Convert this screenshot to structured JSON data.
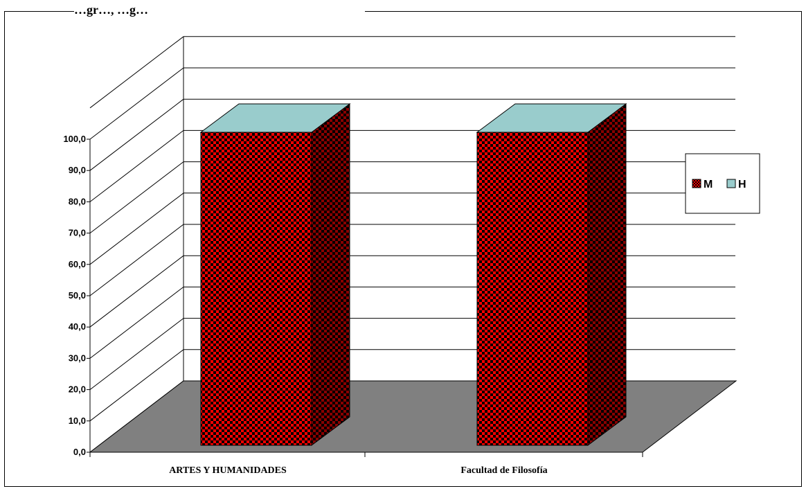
{
  "chart_data": {
    "type": "bar",
    "title_fragment": "…gr…, …g…",
    "categories": [
      "ARTES Y HUMANIDADES",
      "Facultad de Filosofía"
    ],
    "series": [
      {
        "name": "M",
        "values": [
          100.0,
          100.0
        ],
        "color": "#ff0000",
        "pattern": "checkerboard"
      },
      {
        "name": "H",
        "values": [
          0.0,
          0.0
        ],
        "color": "#99cccc"
      }
    ],
    "stacked": true,
    "y_ticks": [
      "0,0",
      "10,0",
      "20,0",
      "30,0",
      "40,0",
      "50,0",
      "60,0",
      "70,0",
      "80,0",
      "90,0",
      "100,0"
    ],
    "ylim": [
      0,
      100
    ],
    "three_d": true,
    "grid": true,
    "legend_position": "right",
    "floor_color": "#808080"
  }
}
